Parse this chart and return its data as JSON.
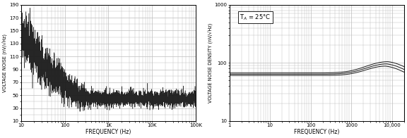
{
  "chart1": {
    "xlabel": "FREQUENCY (Hz)",
    "ylabel": "VOLTAGE NOISE (nV/√Hz)",
    "xlim": [
      10,
      100000
    ],
    "ylim": [
      10,
      190
    ],
    "yticks": [
      10,
      30,
      50,
      70,
      90,
      110,
      130,
      150,
      170,
      190
    ],
    "xtick_labels": [
      "10",
      "100",
      "1K",
      "10K",
      "100K"
    ],
    "xtick_vals": [
      10,
      100,
      1000,
      10000,
      100000
    ],
    "line_color": "#1a1a1a",
    "bg_color": "#ffffff",
    "grid_color": "#bbbbbb"
  },
  "chart2": {
    "xlabel": "FREQUENCY (Hz)",
    "ylabel": "VOLTAGE NOISE DENSITY (nV/√Hz)",
    "xlim": [
      1,
      20000
    ],
    "ylim": [
      10,
      1000
    ],
    "xtick_labels": [
      "1",
      "10",
      "100",
      "1000",
      "10,000"
    ],
    "xtick_vals": [
      1,
      10,
      100,
      1000,
      10000
    ],
    "annotation": "T$_A$ = 25°C",
    "line_color": "#1a1a1a",
    "bg_color": "#ffffff",
    "grid_color": "#bbbbbb"
  }
}
